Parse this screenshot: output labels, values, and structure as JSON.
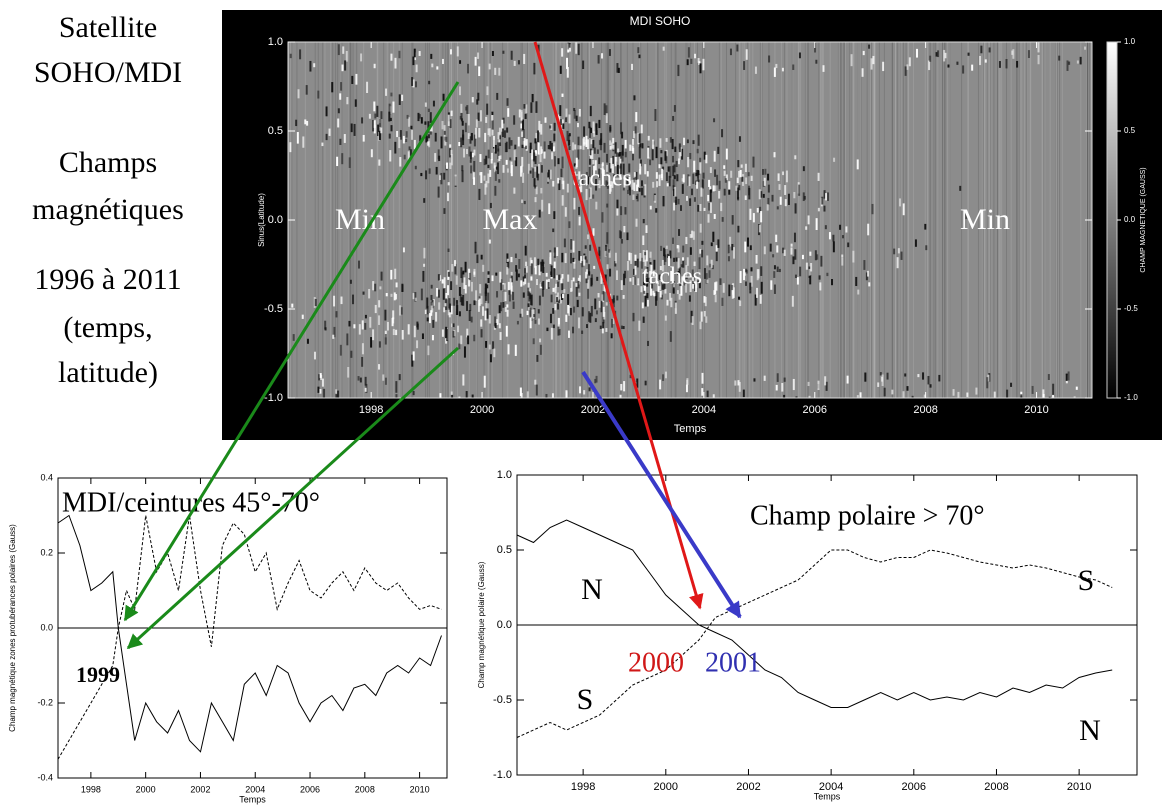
{
  "side_text": [
    "Satellite",
    "SOHO/MDI",
    "Champs",
    "magnétiques",
    "1996 à 2011",
    "(temps,",
    "latitude)"
  ],
  "chart_data": [
    {
      "type": "heatmap",
      "title": "MDI SOHO",
      "xlabel": "Temps",
      "ylabel": "Sinus(Latitude)",
      "colorbar_label": "CHAMP MAGNETIQUE (GAUSS)",
      "xlim": [
        1996.5,
        2011
      ],
      "xticks": [
        1998,
        2000,
        2002,
        2004,
        2006,
        2008,
        2010
      ],
      "ylim": [
        -1,
        1
      ],
      "yticks": [
        {
          "value": -1,
          "label": "-1.0"
        },
        {
          "value": -0.5,
          "label": "-0.5"
        },
        {
          "value": 0,
          "label": "0.0"
        },
        {
          "value": 0.5,
          "label": "0.5"
        },
        {
          "value": 1,
          "label": "1.0"
        }
      ],
      "clim": [
        -1,
        1
      ],
      "cticks": [
        {
          "value": -1,
          "label": "-1.0"
        },
        {
          "value": -0.5,
          "label": "-0.5"
        },
        {
          "value": 0,
          "label": "0.0"
        },
        {
          "value": 0.5,
          "label": "0.5"
        },
        {
          "value": 1,
          "label": "1.0"
        }
      ],
      "colormap": [
        "#000000",
        "#ffffff"
      ],
      "annotations": [
        {
          "text": "Min",
          "color": "#ffffff"
        },
        {
          "text": "Max",
          "color": "#ffffff"
        },
        {
          "text": "Min",
          "color": "#ffffff"
        },
        {
          "text": "taches",
          "color": "#ffffff"
        },
        {
          "text": "taches",
          "color": "#ffffff"
        }
      ]
    },
    {
      "type": "line",
      "title": "MDI/ceintures 45°-70°",
      "xlabel": "Temps",
      "ylabel": "Champ magnétique zones protubérances polaires (Gauss)",
      "xlim": [
        1996.8,
        2011
      ],
      "xticks": [
        1998,
        2000,
        2002,
        2004,
        2006,
        2008,
        2010
      ],
      "ylim": [
        -0.4,
        0.4
      ],
      "yticks": [
        {
          "value": -0.4,
          "label": "-0.4"
        },
        {
          "value": -0.2,
          "label": "-0.2"
        },
        {
          "value": 0,
          "label": "0.0"
        },
        {
          "value": 0.2,
          "label": "0.2"
        },
        {
          "value": 0.4,
          "label": "0.4"
        }
      ],
      "zero_line": true,
      "x": [
        1996.8,
        1997.2,
        1997.6,
        1998,
        1998.4,
        1998.8,
        1999,
        1999.3,
        1999.6,
        2000,
        2000.4,
        2000.8,
        2001.2,
        2001.6,
        2002,
        2002.4,
        2002.8,
        2003.2,
        2003.6,
        2004,
        2004.4,
        2004.8,
        2005.2,
        2005.6,
        2006,
        2006.4,
        2006.8,
        2007.2,
        2007.6,
        2008,
        2008.4,
        2008.8,
        2009.2,
        2009.6,
        2010,
        2010.4,
        2010.8
      ],
      "series": [
        {
          "color": "#000000",
          "dash": false,
          "values": [
            0.28,
            0.3,
            0.22,
            0.1,
            0.12,
            0.15,
            0.0,
            -0.15,
            -0.3,
            -0.2,
            -0.25,
            -0.28,
            -0.22,
            -0.3,
            -0.33,
            -0.2,
            -0.25,
            -0.3,
            -0.15,
            -0.12,
            -0.18,
            -0.1,
            -0.12,
            -0.2,
            -0.25,
            -0.2,
            -0.18,
            -0.22,
            -0.16,
            -0.15,
            -0.18,
            -0.12,
            -0.1,
            -0.12,
            -0.08,
            -0.1,
            -0.02
          ]
        },
        {
          "color": "#000000",
          "dash": true,
          "values": [
            -0.35,
            -0.3,
            -0.25,
            -0.2,
            -0.15,
            -0.1,
            0.0,
            0.1,
            0.05,
            0.3,
            0.15,
            0.2,
            0.1,
            0.3,
            0.1,
            -0.05,
            0.22,
            0.28,
            0.25,
            0.15,
            0.2,
            0.05,
            0.12,
            0.18,
            0.1,
            0.08,
            0.12,
            0.15,
            0.1,
            0.16,
            0.12,
            0.1,
            0.12,
            0.08,
            0.05,
            0.06,
            0.05
          ]
        }
      ],
      "annotations": [
        {
          "text": "1999",
          "color": "#000000"
        }
      ]
    },
    {
      "type": "line",
      "title": "Champ polaire > 70°",
      "xlabel": "Temps",
      "ylabel": "Champ magnétique polaire (Gauss)",
      "xlim": [
        1996.4,
        2011.4
      ],
      "xticks": [
        1998,
        2000,
        2002,
        2004,
        2006,
        2008,
        2010
      ],
      "ylim": [
        -1,
        1
      ],
      "yticks": [
        {
          "value": -1,
          "label": "-1.0"
        },
        {
          "value": -0.5,
          "label": "-0.5"
        },
        {
          "value": 0,
          "label": "0.0"
        },
        {
          "value": 0.5,
          "label": "0.5"
        },
        {
          "value": 1,
          "label": "1.0"
        }
      ],
      "zero_line": true,
      "x": [
        1996.4,
        1996.8,
        1997.2,
        1997.6,
        1998,
        1998.4,
        1998.8,
        1999.2,
        1999.6,
        2000,
        2000.4,
        2000.8,
        2001.2,
        2001.6,
        2002,
        2002.4,
        2002.8,
        2003.2,
        2003.6,
        2004,
        2004.4,
        2004.8,
        2005.2,
        2005.6,
        2006,
        2006.4,
        2006.8,
        2007.2,
        2007.6,
        2008,
        2008.4,
        2008.8,
        2009.2,
        2009.6,
        2010,
        2010.4,
        2010.8
      ],
      "series": [
        {
          "color": "#000000",
          "dash": false,
          "values": [
            0.6,
            0.55,
            0.65,
            0.7,
            0.65,
            0.6,
            0.55,
            0.5,
            0.35,
            0.2,
            0.1,
            0.0,
            -0.05,
            -0.1,
            -0.2,
            -0.3,
            -0.35,
            -0.45,
            -0.5,
            -0.55,
            -0.55,
            -0.5,
            -0.45,
            -0.5,
            -0.45,
            -0.5,
            -0.48,
            -0.5,
            -0.45,
            -0.48,
            -0.42,
            -0.45,
            -0.4,
            -0.42,
            -0.35,
            -0.32,
            -0.3
          ]
        },
        {
          "color": "#000000",
          "dash": true,
          "values": [
            -0.75,
            -0.7,
            -0.65,
            -0.7,
            -0.65,
            -0.6,
            -0.5,
            -0.4,
            -0.35,
            -0.3,
            -0.2,
            -0.1,
            0.05,
            0.1,
            0.15,
            0.2,
            0.25,
            0.3,
            0.4,
            0.5,
            0.5,
            0.45,
            0.42,
            0.45,
            0.45,
            0.5,
            0.48,
            0.45,
            0.42,
            0.4,
            0.38,
            0.4,
            0.38,
            0.35,
            0.32,
            0.3,
            0.25
          ]
        }
      ],
      "annotations": [
        {
          "text": "N",
          "color": "#000000"
        },
        {
          "text": "S",
          "color": "#000000"
        },
        {
          "text": "S",
          "color": "#000000"
        },
        {
          "text": "N",
          "color": "#000000"
        },
        {
          "text": "2000",
          "color": "#d01818"
        },
        {
          "text": "2001",
          "color": "#3030b0"
        }
      ]
    }
  ]
}
